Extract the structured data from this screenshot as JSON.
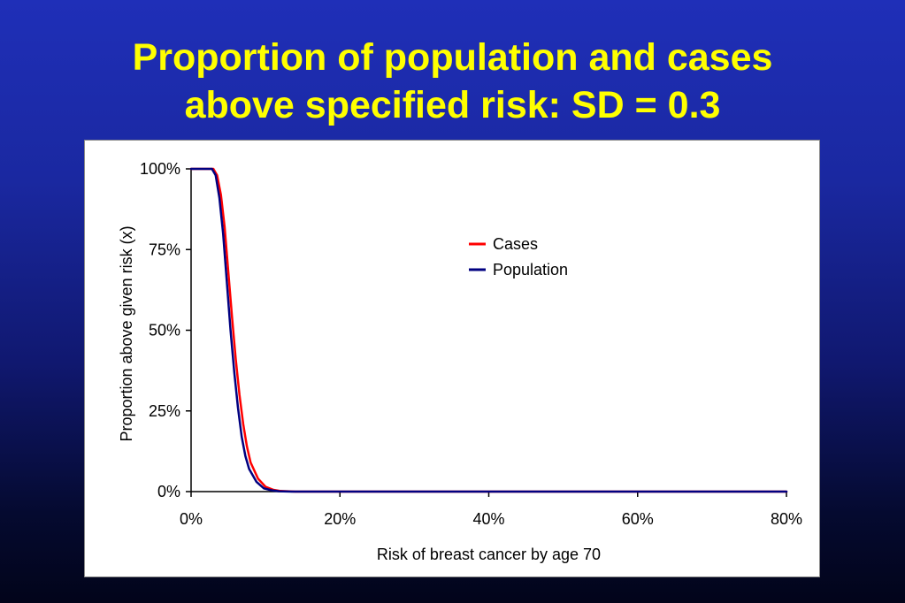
{
  "slide": {
    "title_line1": "Proportion of population and cases",
    "title_line2": "above specified risk:  SD = 0.3"
  },
  "colors": {
    "title": "#ffff00",
    "cases": "#ff0000",
    "population": "#000080"
  },
  "chart_data": {
    "type": "line",
    "xlabel": "Risk of breast cancer by age 70",
    "ylabel": "Proportion above given risk (x)",
    "xlim": [
      0,
      0.8
    ],
    "ylim": [
      0,
      1
    ],
    "xticks": [
      0,
      0.2,
      0.4,
      0.6,
      0.8
    ],
    "xtick_labels": [
      "0%",
      "20%",
      "40%",
      "60%",
      "80%"
    ],
    "yticks": [
      0,
      0.25,
      0.5,
      0.75,
      1
    ],
    "ytick_labels": [
      "0%",
      "25%",
      "50%",
      "75%",
      "100%"
    ],
    "grid": false,
    "legend_position": "top-right",
    "series": [
      {
        "name": "Cases",
        "color": "#ff0000",
        "x": [
          0,
          0.03,
          0.035,
          0.04,
          0.045,
          0.05,
          0.055,
          0.06,
          0.065,
          0.07,
          0.075,
          0.08,
          0.09,
          0.1,
          0.11,
          0.12,
          0.14,
          0.2,
          0.4,
          0.6,
          0.8
        ],
        "y": [
          1,
          1,
          0.98,
          0.92,
          0.82,
          0.68,
          0.54,
          0.41,
          0.3,
          0.21,
          0.14,
          0.09,
          0.04,
          0.015,
          0.006,
          0.002,
          0,
          0,
          0,
          0,
          0
        ]
      },
      {
        "name": "Population",
        "color": "#000080",
        "x": [
          0,
          0.028,
          0.033,
          0.038,
          0.043,
          0.048,
          0.053,
          0.058,
          0.063,
          0.068,
          0.073,
          0.078,
          0.088,
          0.098,
          0.108,
          0.118,
          0.135,
          0.2,
          0.4,
          0.6,
          0.8
        ],
        "y": [
          1,
          1,
          0.98,
          0.91,
          0.8,
          0.65,
          0.5,
          0.37,
          0.26,
          0.17,
          0.11,
          0.07,
          0.03,
          0.01,
          0.004,
          0.001,
          0,
          0,
          0,
          0,
          0
        ]
      }
    ]
  }
}
